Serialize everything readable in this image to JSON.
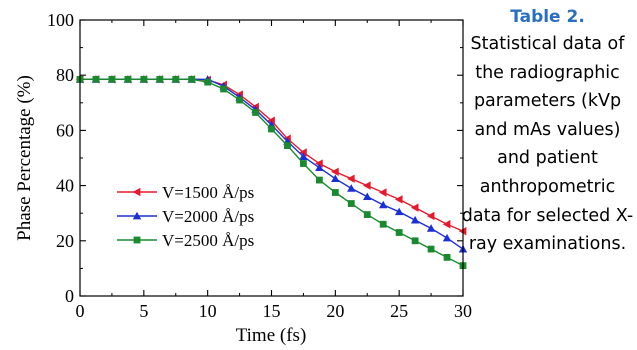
{
  "caption": {
    "title": "Table 2.",
    "text": "Statistical data of the radiographic parameters (kVp and mAs values) and patient anthropometric data for selected X-ray examinations."
  },
  "chart_data": {
    "type": "line",
    "xlabel": "Time (fs)",
    "ylabel": "Phase Percentage (%)",
    "xlim": [
      0,
      30
    ],
    "ylim": [
      0,
      100
    ],
    "xticks": [
      0,
      5,
      10,
      15,
      20,
      25,
      30
    ],
    "yticks": [
      0,
      20,
      40,
      60,
      80,
      100
    ],
    "grid": false,
    "legend_position": "lower-left",
    "x": [
      0,
      1.25,
      2.5,
      3.75,
      5,
      6.25,
      7.5,
      8.75,
      10,
      11.25,
      12.5,
      13.75,
      15,
      16.25,
      17.5,
      18.75,
      20,
      21.25,
      22.5,
      23.75,
      25,
      26.25,
      27.5,
      28.75,
      30
    ],
    "series": [
      {
        "name": "V=1500 Å/ps",
        "color": "#e8192c",
        "marker": "left-triangle",
        "values": [
          78.5,
          78.5,
          78.5,
          78.5,
          78.5,
          78.5,
          78.5,
          78.5,
          78.3,
          76.5,
          73,
          68.5,
          63.5,
          57,
          52,
          48,
          45,
          42.5,
          40,
          37.5,
          35,
          32,
          29,
          26,
          23.5
        ]
      },
      {
        "name": "V=2000 Å/ps",
        "color": "#1c2fd6",
        "marker": "triangle",
        "values": [
          78.5,
          78.5,
          78.5,
          78.5,
          78.5,
          78.5,
          78.5,
          78.5,
          78.5,
          76,
          72,
          67.5,
          62,
          56,
          50.5,
          46.5,
          42.5,
          39,
          36,
          33,
          30.5,
          27.5,
          24.5,
          21,
          17
        ]
      },
      {
        "name": "V=2500 Å/ps",
        "color": "#1a8a2e",
        "marker": "square",
        "values": [
          78.5,
          78.5,
          78.5,
          78.5,
          78.5,
          78.5,
          78.5,
          78.5,
          77.5,
          75,
          71,
          66.5,
          60.5,
          54.5,
          48,
          42,
          37.5,
          33.5,
          29.5,
          26,
          23,
          20,
          17,
          14,
          11
        ]
      }
    ]
  }
}
